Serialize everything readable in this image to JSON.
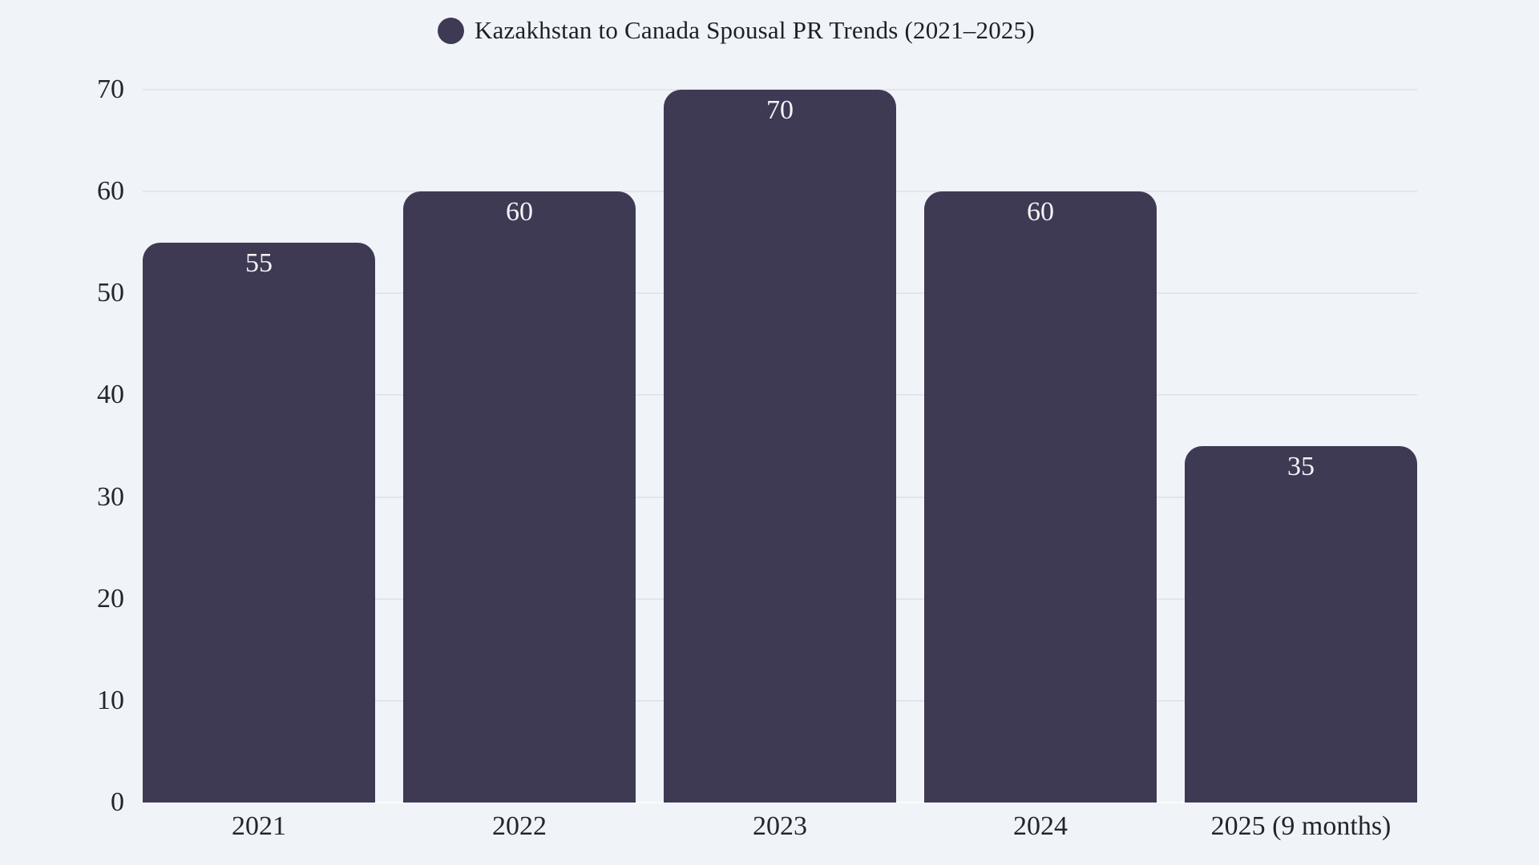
{
  "chart_data": {
    "type": "bar",
    "title": "Kazakhstan to Canada Spousal PR Trends (2021–2025)",
    "legend_entries": [
      "Kazakhstan to Canada Spousal PR Trends (2021–2025)"
    ],
    "legend_position": "top-center",
    "categories": [
      "2021",
      "2022",
      "2023",
      "2024",
      "2025 (9 months)"
    ],
    "values": [
      55,
      60,
      70,
      60,
      35
    ],
    "value_labels_shown": true,
    "xlabel": "",
    "ylabel": "",
    "ylim": [
      0,
      70
    ],
    "yticks": [
      0,
      10,
      20,
      30,
      40,
      50,
      60,
      70
    ],
    "grid": "horizontal",
    "colors": {
      "bar": "#3E3A54",
      "background": "#F0F4F8",
      "gridline": "#E2E5EB",
      "baseline": "#F8FAFC",
      "tick_text": "#23252D",
      "title_text": "#1D2029",
      "value_label_text": "#F4F3F6"
    }
  }
}
